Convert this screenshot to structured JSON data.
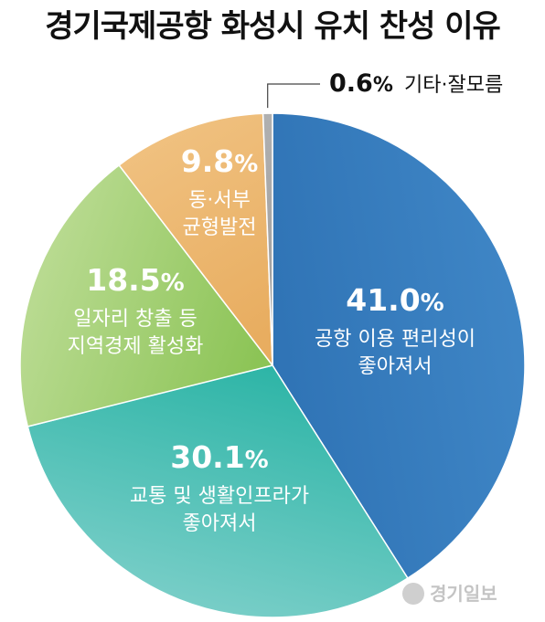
{
  "title": "경기국제공항 화성시 유치 찬성 이유",
  "watermark": "경기일보",
  "chart_data": {
    "type": "pie",
    "title": "경기국제공항 화성시 유치 찬성 이유",
    "unit": "%",
    "slices": [
      {
        "label_lines": [
          "공항 이용 편리성이",
          "좋아져서"
        ],
        "value": 41.0,
        "value_text": "41.0",
        "color": "#2f73b5",
        "color_light": "#3f86c6"
      },
      {
        "label_lines": [
          "교통 및 생활인프라가",
          "좋아져서"
        ],
        "value": 30.1,
        "value_text": "30.1",
        "color": "#2eb5a7",
        "color_light": "#7ccfc9"
      },
      {
        "label_lines": [
          "일자리 창출 등",
          "지역경제 활성화"
        ],
        "value": 18.5,
        "value_text": "18.5",
        "color": "#8cc456",
        "color_light": "#bcdc95"
      },
      {
        "label_lines": [
          "동·서부",
          "균형발전"
        ],
        "value": 9.8,
        "value_text": "9.8",
        "color": "#e8ad60",
        "color_light": "#f0c180"
      },
      {
        "label_lines": [
          "기타·잘모름"
        ],
        "value": 0.6,
        "value_text": "0.6",
        "color": "#9a9a9a",
        "color_light": "#b0b0b0"
      }
    ]
  }
}
